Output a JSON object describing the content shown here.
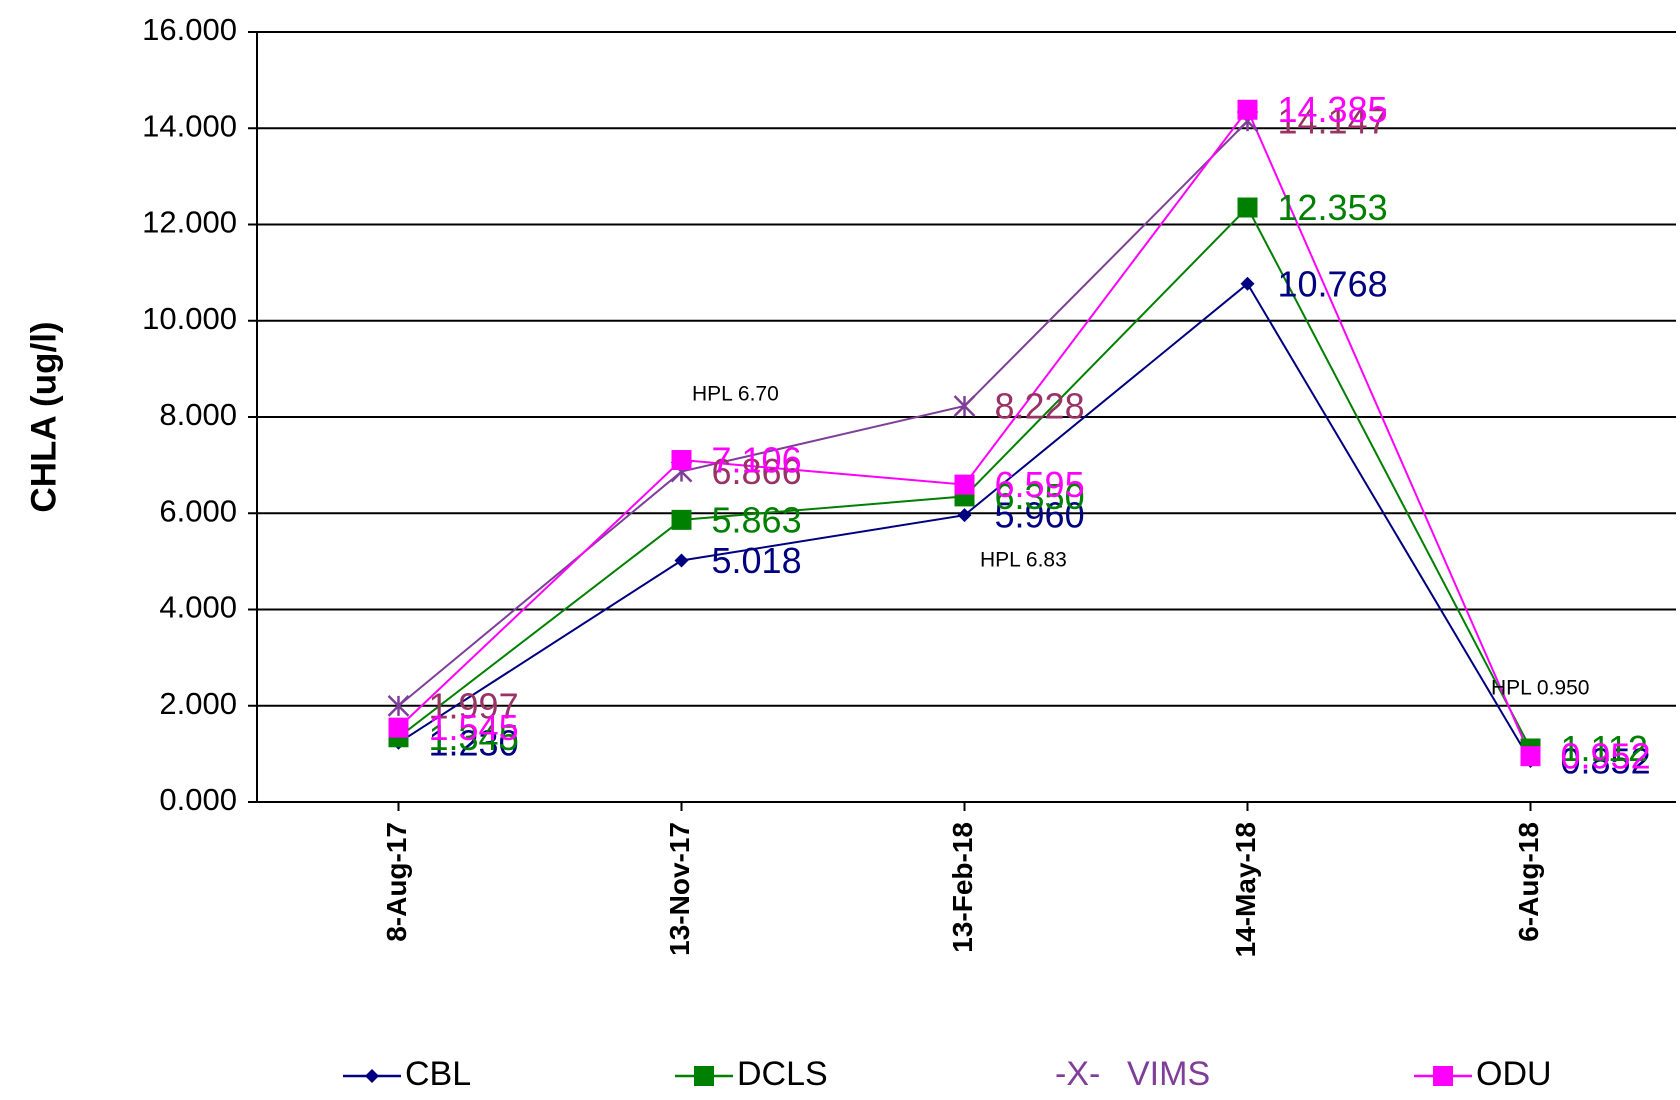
{
  "chart_data": {
    "type": "line",
    "y_label": "CHLA (ug/l)",
    "categories": [
      "8-Aug-17",
      "13-Nov-17",
      "13-Feb-18",
      "14-May-18",
      "6-Aug-18"
    ],
    "series": [
      {
        "name": "CBL",
        "color": "#000080",
        "marker": "diamond",
        "values": [
          1.23,
          5.018,
          5.96,
          10.768,
          0.852
        ],
        "value_labels": [
          "1.230",
          "5.018",
          "5.960",
          "10.768",
          "0.852"
        ]
      },
      {
        "name": "DCLS",
        "color": "#008000",
        "marker": "square",
        "values": [
          1.345,
          5.863,
          6.35,
          12.353,
          1.112
        ],
        "value_labels": [
          "1.345",
          "5.863",
          "6.350",
          "12.353",
          "1.112"
        ]
      },
      {
        "name": "VIMS",
        "color": "#7f3f98",
        "label_color": "#993366",
        "marker": "star",
        "legend_symbol": "-X-",
        "values": [
          1.997,
          6.866,
          8.228,
          14.147,
          null
        ],
        "value_labels": [
          "1.997",
          "6.866",
          "8.228",
          "14.147",
          null
        ]
      },
      {
        "name": "ODU",
        "color": "#ff00ff",
        "marker": "square",
        "values": [
          1.545,
          7.106,
          6.595,
          14.385,
          0.952
        ],
        "value_labels": [
          "1.545",
          "7.106",
          "6.595",
          "14.385",
          "0.952"
        ]
      }
    ],
    "annotations": [
      "HPL 6.70",
      "HPL 6.83",
      "HPL 0.950"
    ],
    "ylim": [
      0,
      16
    ],
    "yticks": [
      {
        "value": 0,
        "label": "0.000"
      },
      {
        "value": 2,
        "label": "2.000"
      },
      {
        "value": 4,
        "label": "4.000"
      },
      {
        "value": 6,
        "label": "6.000"
      },
      {
        "value": 8,
        "label": "8.000"
      },
      {
        "value": 10,
        "label": "10.000"
      },
      {
        "value": 12,
        "label": "12.000"
      },
      {
        "value": 14,
        "label": "14.000"
      },
      {
        "value": 16,
        "label": "16.000"
      }
    ],
    "grid": true,
    "legend": "bottom"
  }
}
